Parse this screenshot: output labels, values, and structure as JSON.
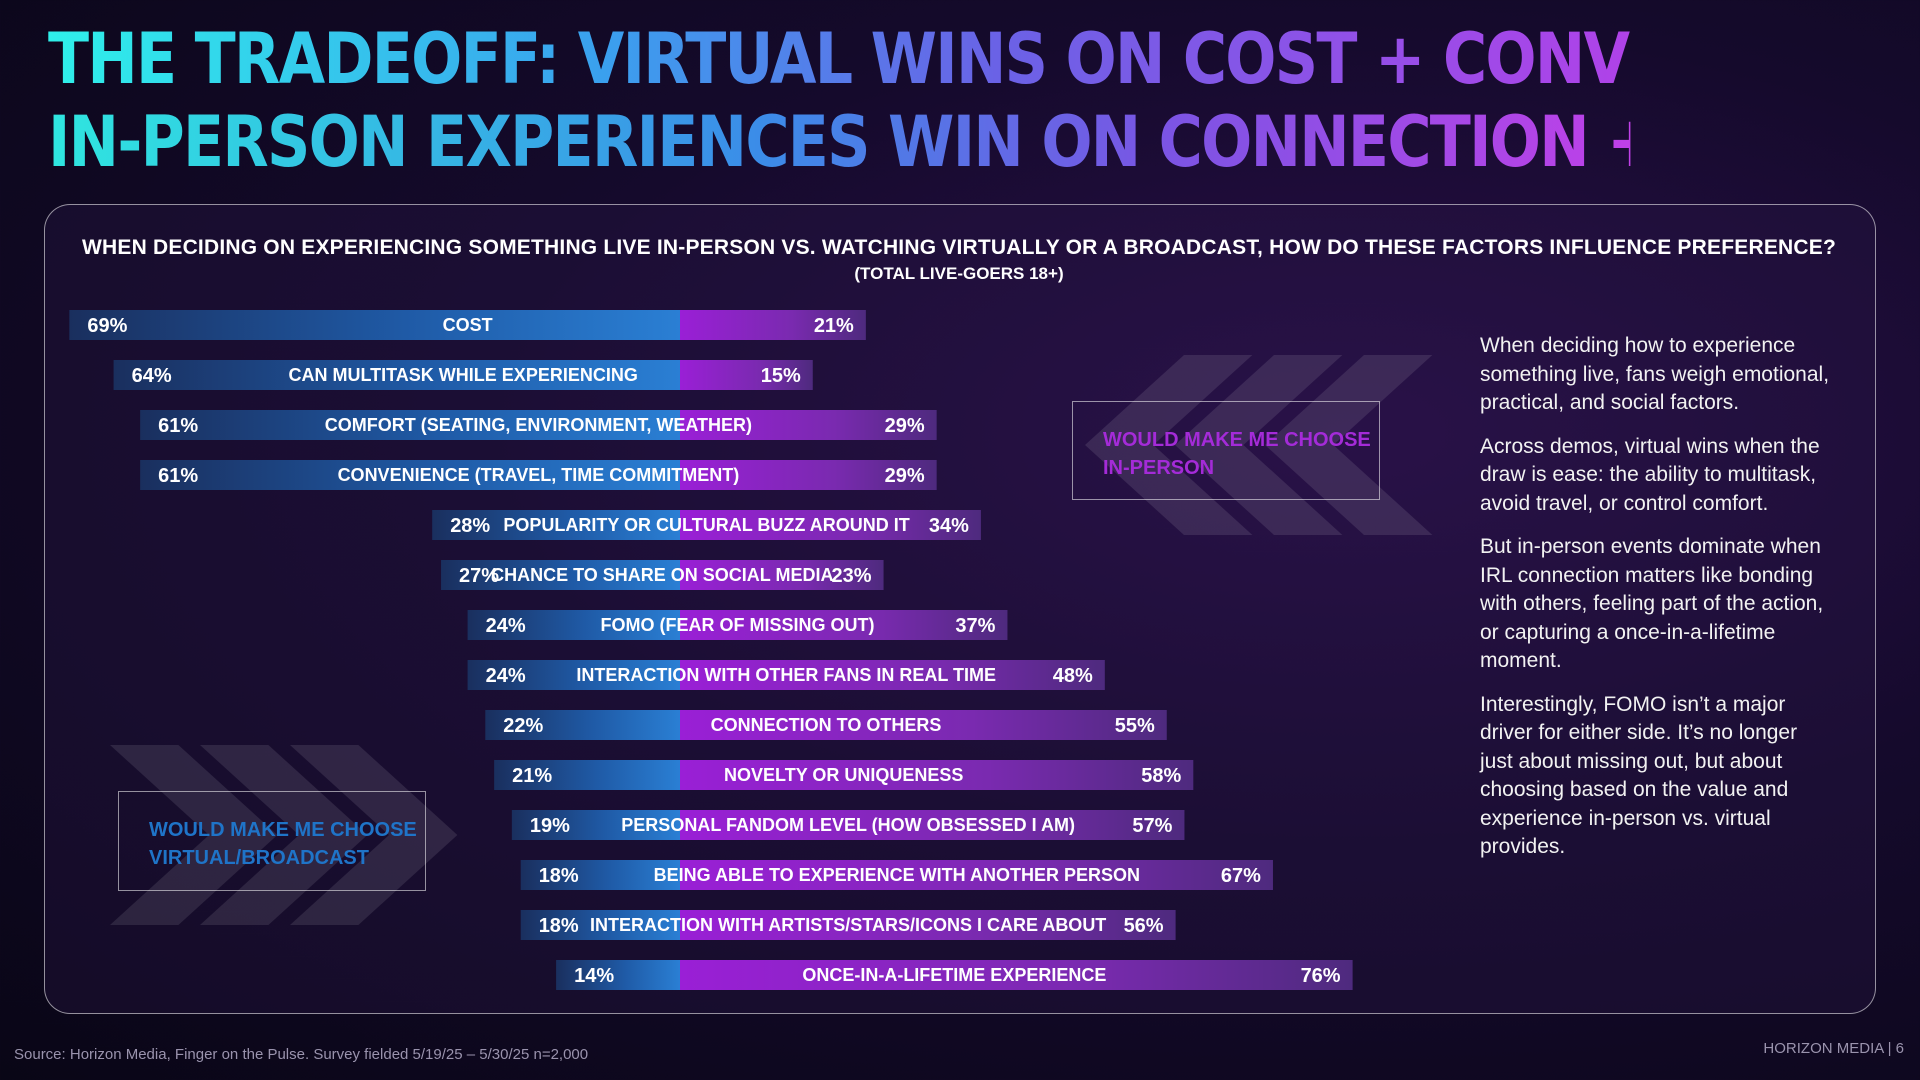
{
  "headline": {
    "line1": "THE TRADEOFF: VIRTUAL WINS ON COST + CONVENIENCE,",
    "line2": "IN-PERSON EXPERIENCES WIN ON CONNECTION + NOVELTY"
  },
  "question": "WHEN DECIDING ON EXPERIENCING SOMETHING LIVE IN-PERSON VS. WATCHING VIRTUALLY OR A BROADCAST, HOW DO THESE FACTORS INFLUENCE PREFERENCE?",
  "base": "(TOTAL LIVE-GOERS 18+)",
  "legend": {
    "in_person": "WOULD MAKE ME CHOOSE IN-PERSON",
    "virtual": "WOULD MAKE ME CHOOSE VIRTUAL/BROADCAST"
  },
  "colors": {
    "virtual": "#1f74c8",
    "in_person": "#a42bd8",
    "background": "#150a2c"
  },
  "chart_data": {
    "type": "bar",
    "orientation": "horizontal-diverging",
    "categories": [
      "COST",
      "CAN MULTITASK WHILE EXPERIENCING",
      "COMFORT (SEATING, ENVIRONMENT, WEATHER)",
      "CONVENIENCE (TRAVEL, TIME COMMITMENT)",
      "POPULARITY OR CULTURAL BUZZ AROUND IT",
      "CHANCE TO SHARE ON SOCIAL MEDIA",
      "FOMO (FEAR OF MISSING OUT)",
      "INTERACTION WITH OTHER FANS IN REAL TIME",
      "CONNECTION TO OTHERS",
      "NOVELTY OR UNIQUENESS",
      "PERSONAL FANDOM LEVEL (HOW OBSESSED I AM)",
      "BEING ABLE TO EXPERIENCE WITH ANOTHER PERSON",
      "INTERACTION WITH ARTISTS/STARS/ICONS I CARE ABOUT",
      "ONCE-IN-A-LIFETIME EXPERIENCE"
    ],
    "series": [
      {
        "name": "WOULD MAKE ME CHOOSE VIRTUAL/BROADCAST",
        "values": [
          69,
          64,
          61,
          61,
          28,
          27,
          24,
          24,
          22,
          21,
          19,
          18,
          18,
          14
        ]
      },
      {
        "name": "WOULD MAKE ME CHOOSE IN-PERSON",
        "values": [
          21,
          15,
          29,
          29,
          34,
          23,
          37,
          48,
          55,
          58,
          57,
          67,
          56,
          76
        ]
      }
    ],
    "labels_virtual": [
      "69%",
      "64%",
      "61%",
      "61%",
      "28%",
      "27%",
      "24%",
      "24%",
      "22%",
      "21%",
      "19%",
      "18%",
      "18%",
      "14%"
    ],
    "labels_in_person": [
      "21%",
      "15%",
      "29%",
      "29%",
      "34%",
      "23%",
      "37%",
      "48%",
      "55%",
      "58%",
      "57%",
      "67%",
      "56%",
      "76%"
    ],
    "unit": "%"
  },
  "sidebar": {
    "paragraphs": [
      "When deciding how to experience something live, fans weigh emotional, practical, and social factors.",
      "Across demos, virtual wins when the draw is ease: the ability to multitask, avoid travel, or control comfort.",
      "But in-person events dominate when IRL connection matters like bonding with others, feeling part of the action, or capturing a once-in-a-lifetime moment.",
      "Interestingly, FOMO isn’t a major driver for either side. It’s no longer just about missing out, but about choosing based on the value and experience in-person vs. virtual provides."
    ]
  },
  "footer": {
    "source": "Source: Horizon Media, Finger on the Pulse. Survey fielded 5/19/25 – 5/30/25 n=2,000",
    "page": "HORIZON MEDIA | 6"
  }
}
